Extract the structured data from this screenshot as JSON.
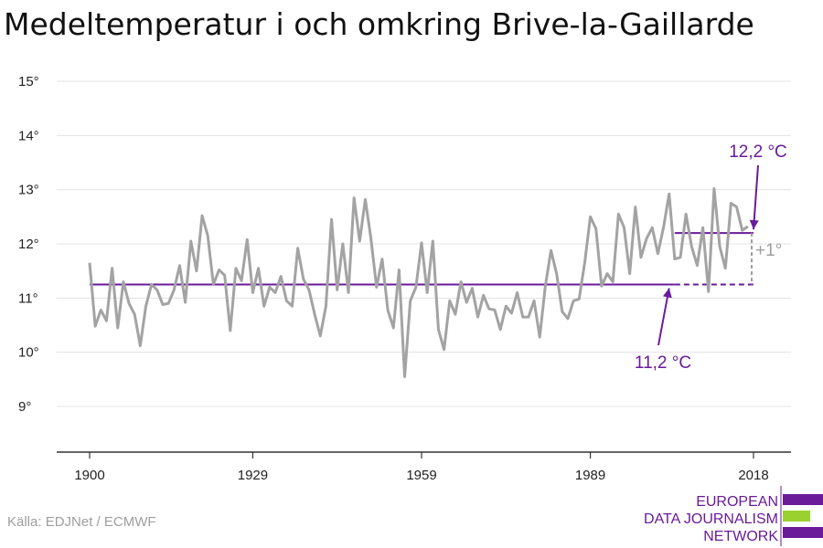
{
  "chart_data": {
    "type": "line",
    "title": "Medeltemperatur i och omkring Brive-la-Gaillarde",
    "xlabel": "",
    "ylabel": "",
    "xlim": [
      1900,
      2018
    ],
    "ylim": [
      8.2,
      15.2
    ],
    "xticks": [
      {
        "value": 1900,
        "label": "1900"
      },
      {
        "value": 1929,
        "label": "1929"
      },
      {
        "value": 1959,
        "label": "1959"
      },
      {
        "value": 1989,
        "label": "1989"
      },
      {
        "value": 2018,
        "label": "2018"
      }
    ],
    "yticks": [
      {
        "value": 9,
        "label": "9°"
      },
      {
        "value": 10,
        "label": "10°"
      },
      {
        "value": 11,
        "label": "11°"
      },
      {
        "value": 12,
        "label": "12°"
      },
      {
        "value": 13,
        "label": "13°"
      },
      {
        "value": 14,
        "label": "14°"
      },
      {
        "value": 15,
        "label": "15°"
      }
    ],
    "grid": true,
    "x_start": 1900,
    "values": [
      11.65,
      10.48,
      10.78,
      10.58,
      11.55,
      10.45,
      11.3,
      10.9,
      10.7,
      10.12,
      10.85,
      11.25,
      11.15,
      10.88,
      10.9,
      11.15,
      11.6,
      10.92,
      12.05,
      11.5,
      12.52,
      12.15,
      11.25,
      11.52,
      11.42,
      10.4,
      11.55,
      11.32,
      12.08,
      11.1,
      11.55,
      10.85,
      11.2,
      11.1,
      11.4,
      10.95,
      10.85,
      11.92,
      11.35,
      11.15,
      10.7,
      10.3,
      10.85,
      12.45,
      11.15,
      12.0,
      11.1,
      12.85,
      12.05,
      12.82,
      12.1,
      11.2,
      11.72,
      10.78,
      10.45,
      11.52,
      9.55,
      10.95,
      11.2,
      12.02,
      11.1,
      12.05,
      10.42,
      10.05,
      10.95,
      10.7,
      11.3,
      10.92,
      11.18,
      10.65,
      11.05,
      10.8,
      10.78,
      10.42,
      10.85,
      10.72,
      11.1,
      10.65,
      10.65,
      10.95,
      10.28,
      11.22,
      11.88,
      11.45,
      10.75,
      10.62,
      10.95,
      10.98,
      11.65,
      12.5,
      12.28,
      11.22,
      11.45,
      11.3,
      12.55,
      12.3,
      11.45,
      12.68,
      11.75,
      12.1,
      12.3,
      11.82,
      12.3,
      12.92,
      11.72,
      11.75,
      12.55,
      11.95,
      11.6,
      12.3,
      11.12,
      13.02,
      11.95,
      11.55,
      12.75,
      12.68,
      12.25,
      12.32
    ],
    "baseline": {
      "label": "11,2 °C",
      "value": 11.25,
      "from": 1900,
      "to": 2004,
      "dashed_to": 2018
    },
    "recent": {
      "label": "12,2 °C",
      "value": 12.2,
      "from": 2004,
      "to": 2018
    },
    "difference_label": "+1°",
    "series_color": "#a3a3a3",
    "accent_color": "#6a1b9a"
  },
  "source": "Källa: EDJNet / ECMWF",
  "logo": {
    "lines": [
      "EUROPEAN",
      "DATA JOURNALISM",
      "NETWORK"
    ],
    "color": "#6a1b9a",
    "accent": "#9bd12f"
  }
}
